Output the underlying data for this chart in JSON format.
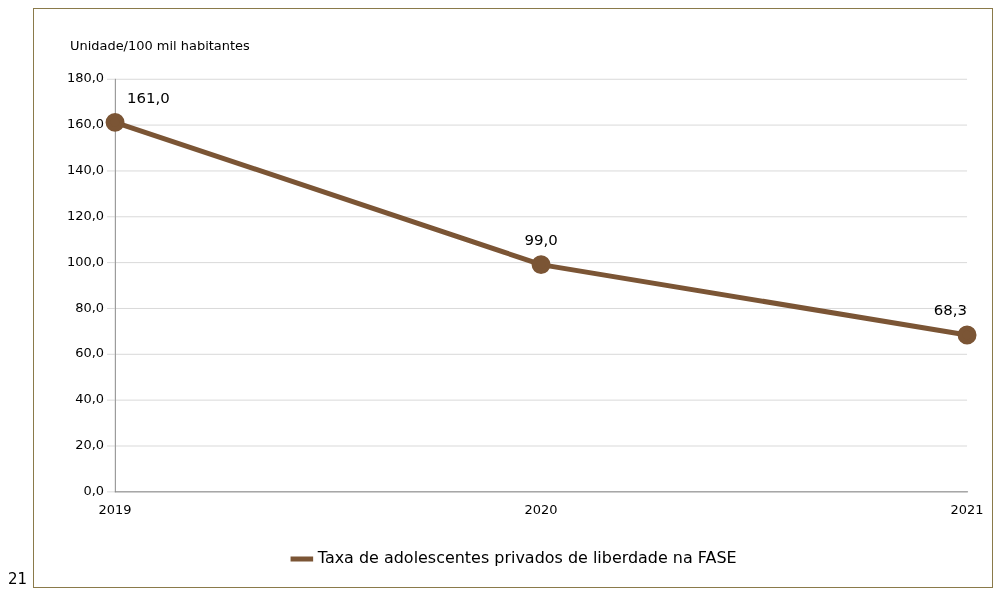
{
  "chart_data": {
    "type": "line",
    "ylabel": "Unidade/100 mil habitantes",
    "categories": [
      "2019",
      "2020",
      "2021"
    ],
    "series": [
      {
        "name": "Taxa de adolescentes privados de liberdade na FASE",
        "color": "#7b5535",
        "values": [
          161.0,
          99.0,
          68.3
        ]
      }
    ],
    "ylim": [
      0,
      180
    ],
    "yticks": [
      {
        "value": 0,
        "label": "0,0"
      },
      {
        "value": 20,
        "label": "20,0"
      },
      {
        "value": 40,
        "label": "40,0"
      },
      {
        "value": 60,
        "label": "60,0"
      },
      {
        "value": 80,
        "label": "80,0"
      },
      {
        "value": 100,
        "label": "100,0"
      },
      {
        "value": 120,
        "label": "120,0"
      },
      {
        "value": 140,
        "label": "140,0"
      },
      {
        "value": 160,
        "label": "160,0"
      },
      {
        "value": 180,
        "label": "180,0"
      }
    ],
    "value_labels": [
      "161,0",
      "99,0",
      "68,3"
    ],
    "grid": "y",
    "legend": "bottom",
    "marker": "circle",
    "line_style": "solid",
    "annotations": [
      "21"
    ]
  }
}
